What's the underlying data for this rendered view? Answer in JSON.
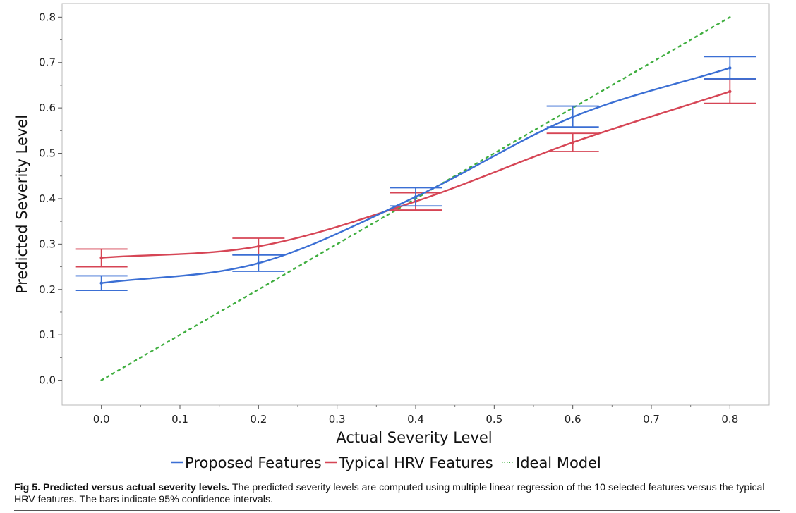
{
  "chart_data": {
    "type": "line",
    "xlabel": "Actual Severity Level",
    "ylabel": "Predicted Severity Level",
    "xlim": [
      -0.05,
      0.85
    ],
    "ylim": [
      -0.055,
      0.83
    ],
    "x_ticks": [
      0.0,
      0.1,
      0.2,
      0.3,
      0.4,
      0.5,
      0.6,
      0.7,
      0.8
    ],
    "x_tick_labels": [
      "0.0",
      "0.1",
      "0.2",
      "0.3",
      "0.4",
      "0.5",
      "0.6",
      "0.7",
      "0.8"
    ],
    "y_ticks": [
      0.0,
      0.1,
      0.2,
      0.3,
      0.4,
      0.5,
      0.6,
      0.7,
      0.8
    ],
    "y_tick_labels": [
      "0.0",
      "0.1",
      "0.2",
      "0.3",
      "0.4",
      "0.5",
      "0.6",
      "0.7",
      "0.8"
    ],
    "grid": false,
    "legend_position": "bottom-center",
    "series": [
      {
        "name": "Proposed Features",
        "color": "#3b6fd4",
        "style": "solid",
        "x": [
          0.0,
          0.2,
          0.4,
          0.6,
          0.8
        ],
        "y": [
          0.214,
          0.258,
          0.404,
          0.58,
          0.688
        ],
        "ci_low": [
          0.198,
          0.24,
          0.384,
          0.558,
          0.664
        ],
        "ci_high": [
          0.23,
          0.276,
          0.424,
          0.604,
          0.713
        ]
      },
      {
        "name": "Typical HRV Features",
        "color": "#d64555",
        "style": "solid",
        "x": [
          0.0,
          0.2,
          0.4,
          0.6,
          0.8
        ],
        "y": [
          0.27,
          0.295,
          0.394,
          0.524,
          0.636
        ],
        "ci_low": [
          0.25,
          0.277,
          0.375,
          0.504,
          0.61
        ],
        "ci_high": [
          0.289,
          0.313,
          0.413,
          0.544,
          0.663
        ]
      },
      {
        "name": "Ideal Model",
        "color": "#3fae3f",
        "style": "dotted",
        "x": [
          0.0,
          0.8
        ],
        "y": [
          0.0,
          0.8
        ]
      }
    ]
  },
  "caption": {
    "title": "Fig 5. Predicted versus actual severity levels.",
    "text": " The predicted severity levels are computed using multiple linear regression of the 10 selected features versus the typical HRV features. The bars indicate 95% confidence intervals."
  }
}
